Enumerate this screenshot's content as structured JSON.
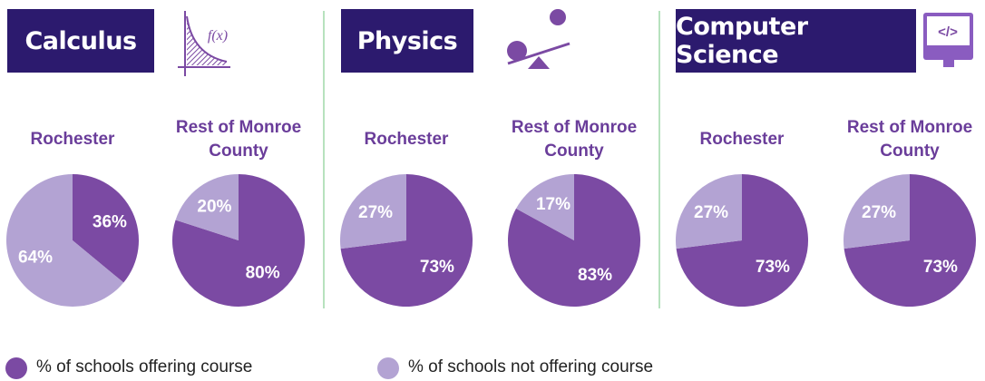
{
  "sections": [
    {
      "title": "Calculus",
      "icon_text": "f(x)"
    },
    {
      "title": "Physics"
    },
    {
      "title": "Computer Science",
      "icon_text": "</>"
    }
  ],
  "legend": [
    {
      "name": "% of schools offering course",
      "color": "#7b4aa3"
    },
    {
      "name": "% of schools not offering course",
      "color": "#b3a3d3"
    }
  ],
  "chart_data": [
    {
      "type": "pie",
      "title": "Rochester",
      "values": [
        36,
        64
      ],
      "value_labels": [
        "36%",
        "64%"
      ],
      "colors": [
        "#7b4aa3",
        "#b3a3d3"
      ]
    },
    {
      "type": "pie",
      "title": "Rest of Monroe County",
      "values": [
        80,
        20
      ],
      "value_labels": [
        "80%",
        "20%"
      ],
      "colors": [
        "#7b4aa3",
        "#b3a3d3"
      ]
    },
    {
      "type": "pie",
      "title": "Rochester",
      "values": [
        73,
        27
      ],
      "value_labels": [
        "73%",
        "27%"
      ],
      "colors": [
        "#7b4aa3",
        "#b3a3d3"
      ]
    },
    {
      "type": "pie",
      "title": "Rest of Monroe County",
      "values": [
        83,
        17
      ],
      "value_labels": [
        "83%",
        "17%"
      ],
      "colors": [
        "#7b4aa3",
        "#b3a3d3"
      ]
    },
    {
      "type": "pie",
      "title": "Rochester",
      "values": [
        73,
        27
      ],
      "value_labels": [
        "73%",
        "27%"
      ],
      "colors": [
        "#7b4aa3",
        "#b3a3d3"
      ]
    },
    {
      "type": "pie",
      "title": "Rest of Monroe County",
      "values": [
        73,
        27
      ],
      "value_labels": [
        "73%",
        "27%"
      ],
      "colors": [
        "#7b4aa3",
        "#b3a3d3"
      ]
    }
  ]
}
